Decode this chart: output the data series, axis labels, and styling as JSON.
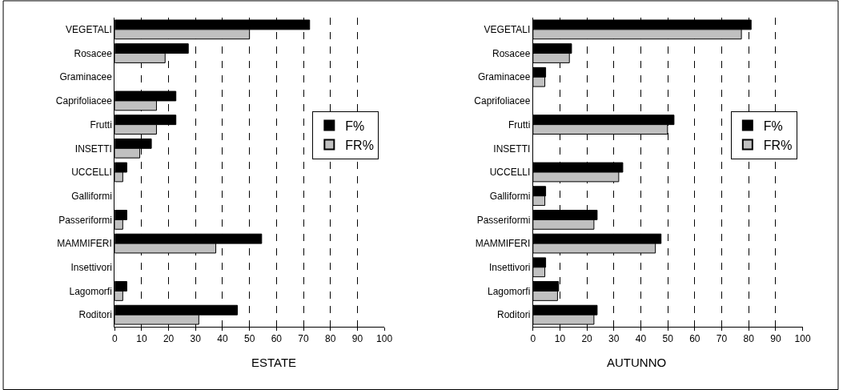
{
  "chart_data": [
    {
      "type": "bar",
      "orientation": "horizontal",
      "xlabel": "ESTATE",
      "categories": [
        "VEGETALI",
        "Rosacee",
        "Graminacee",
        "Caprifoliacee",
        "Frutti",
        "INSETTI",
        "UCCELLI",
        "Galliformi",
        "Passeriformi",
        "MAMMIFERI",
        "Insettivori",
        "Lagomorfi",
        "Roditori"
      ],
      "series": [
        {
          "name": "F%",
          "color": "#000000",
          "values": [
            72.3,
            27.3,
            null,
            22.7,
            22.7,
            13.6,
            4.5,
            null,
            4.5,
            54.5,
            null,
            4.5,
            45.5
          ]
        },
        {
          "name": "FR%",
          "color": "#c0c0c0",
          "values": [
            50,
            18.7,
            null,
            15.5,
            15.5,
            9.3,
            3,
            null,
            3,
            37.5,
            null,
            3,
            31.2
          ]
        }
      ],
      "xlim": [
        0,
        100
      ],
      "xticks": [
        0,
        10,
        20,
        30,
        40,
        50,
        60,
        70,
        80,
        90,
        100
      ],
      "grid": "x",
      "legend": "right"
    },
    {
      "type": "bar",
      "orientation": "horizontal",
      "xlabel": "AUTUNNO",
      "categories": [
        "VEGETALI",
        "Rosacee",
        "Graminacee",
        "Caprifoliacee",
        "Frutti",
        "INSETTI",
        "UCCELLI",
        "Galliformi",
        "Passeriformi",
        "MAMMIFERI",
        "Insettivori",
        "Lagomorfi",
        "Roditori"
      ],
      "series": [
        {
          "name": "F%",
          "color": "#000000",
          "values": [
            80.9,
            14.3,
            4.7,
            null,
            52.3,
            null,
            33.3,
            4.7,
            23.8,
            47.5,
            4.7,
            9.5,
            23.8
          ]
        },
        {
          "name": "FR%",
          "color": "#c0c0c0",
          "values": [
            77.3,
            13.5,
            4.4,
            null,
            49.9,
            null,
            31.8,
            4.4,
            22.6,
            45.4,
            4.4,
            9.1,
            22.6
          ]
        }
      ],
      "xlim": [
        0,
        100
      ],
      "xticks": [
        0,
        10,
        20,
        30,
        40,
        50,
        60,
        70,
        80,
        90,
        100
      ],
      "grid": "x",
      "legend": "right"
    }
  ]
}
